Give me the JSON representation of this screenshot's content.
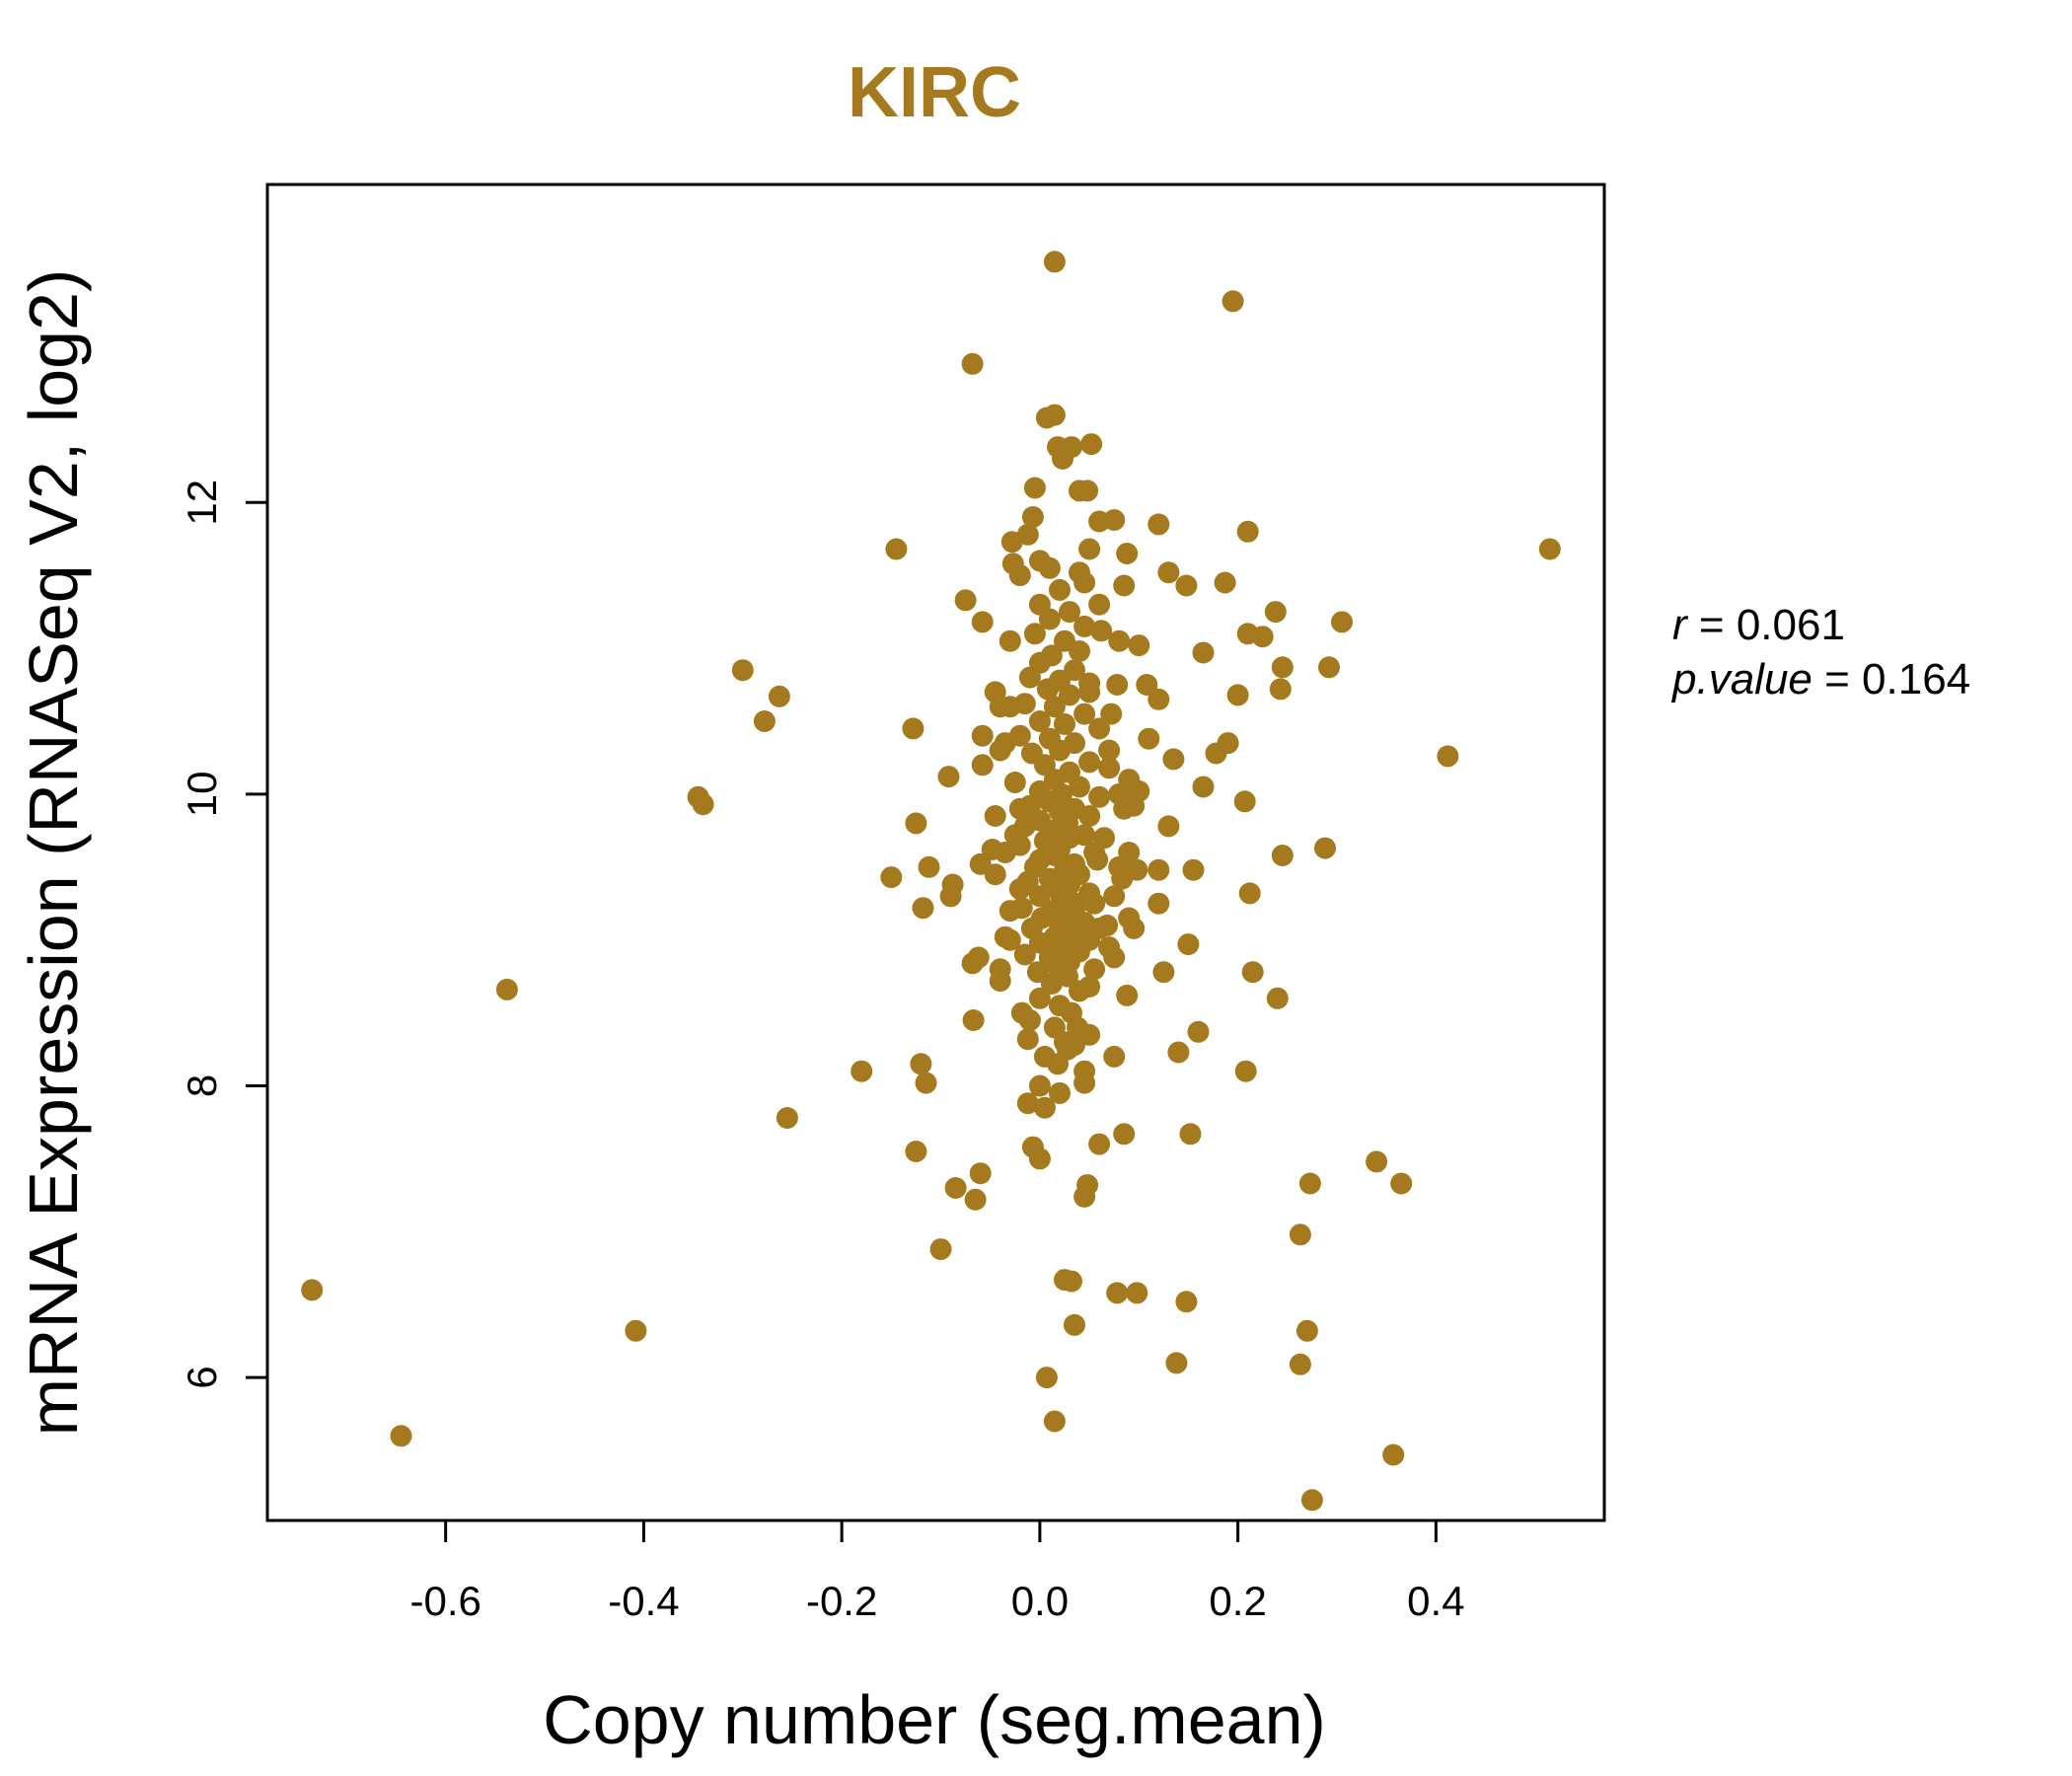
{
  "colors": {
    "points": "#A57A1F",
    "title": "#A57A1F",
    "axis": "#000000"
  },
  "stats": {
    "r_label": "r",
    "r_value": "0.061",
    "p_label": "p.value",
    "p_value": "0.164"
  },
  "chart_data": {
    "type": "scatter",
    "title": "KIRC",
    "xlabel": "Copy number (seg.mean)",
    "ylabel": "mRNA Expression (RNASeq V2, log2)",
    "xlim": [
      -0.78,
      0.57
    ],
    "ylim": [
      5.02,
      14.18
    ],
    "x_ticks": [
      -0.6,
      -0.4,
      -0.2,
      0.0,
      0.2,
      0.4
    ],
    "x_tick_labels": [
      "-0.6",
      "-0.4",
      "-0.2",
      "0.0",
      "0.2",
      "0.4"
    ],
    "y_ticks": [
      6,
      8,
      10,
      12
    ],
    "y_tick_labels": [
      "6",
      "8",
      "10",
      "12"
    ],
    "grid": false,
    "points": [
      [
        0.015,
        13.65
      ],
      [
        0.195,
        13.38
      ],
      [
        -0.068,
        12.95
      ],
      [
        0.015,
        12.6
      ],
      [
        0.007,
        12.58
      ],
      [
        0.052,
        12.4
      ],
      [
        0.018,
        12.38
      ],
      [
        0.032,
        12.38
      ],
      [
        0.023,
        12.3
      ],
      [
        -0.005,
        12.1
      ],
      [
        0.048,
        12.08
      ],
      [
        0.04,
        12.08
      ],
      [
        -0.145,
        11.68
      ],
      [
        0.515,
        11.68
      ],
      [
        0.12,
        11.85
      ],
      [
        0.21,
        11.8
      ],
      [
        0.075,
        11.88
      ],
      [
        0.06,
        11.87
      ],
      [
        -0.007,
        11.9
      ],
      [
        -0.012,
        11.78
      ],
      [
        -0.028,
        11.73
      ],
      [
        0.05,
        11.68
      ],
      [
        0.088,
        11.65
      ],
      [
        -0.027,
        11.58
      ],
      [
        0.0,
        11.6
      ],
      [
        0.04,
        11.52
      ],
      [
        0.13,
        11.52
      ],
      [
        0.148,
        11.43
      ],
      [
        0.187,
        11.45
      ],
      [
        0.085,
        11.43
      ],
      [
        -0.075,
        11.33
      ],
      [
        0.238,
        11.25
      ],
      [
        0.305,
        11.18
      ],
      [
        -0.058,
        11.18
      ],
      [
        0.045,
        11.15
      ],
      [
        0.062,
        11.12
      ],
      [
        0.21,
        11.1
      ],
      [
        0.225,
        11.08
      ],
      [
        -0.03,
        11.05
      ],
      [
        0.08,
        11.05
      ],
      [
        0.1,
        11.02
      ],
      [
        0.165,
        10.97
      ],
      [
        0.245,
        10.87
      ],
      [
        0.292,
        10.87
      ],
      [
        -0.3,
        10.85
      ],
      [
        -0.263,
        10.67
      ],
      [
        -0.278,
        10.5
      ],
      [
        0.078,
        10.75
      ],
      [
        0.108,
        10.75
      ],
      [
        0.2,
        10.68
      ],
      [
        0.243,
        10.72
      ],
      [
        0.12,
        10.65
      ],
      [
        -0.045,
        10.7
      ],
      [
        -0.04,
        10.6
      ],
      [
        0.05,
        10.7
      ],
      [
        -0.128,
        10.45
      ],
      [
        -0.058,
        10.4
      ],
      [
        0.11,
        10.38
      ],
      [
        0.19,
        10.35
      ],
      [
        -0.035,
        10.35
      ],
      [
        0.178,
        10.28
      ],
      [
        0.412,
        10.26
      ],
      [
        0.135,
        10.24
      ],
      [
        0.07,
        10.18
      ],
      [
        -0.058,
        10.2
      ],
      [
        -0.092,
        10.12
      ],
      [
        0.165,
        10.05
      ],
      [
        0.1,
        10.02
      ],
      [
        -0.345,
        9.98
      ],
      [
        -0.34,
        9.93
      ],
      [
        0.207,
        9.95
      ],
      [
        0.095,
        9.92
      ],
      [
        -0.02,
        9.9
      ],
      [
        -0.045,
        9.85
      ],
      [
        -0.125,
        9.8
      ],
      [
        0.13,
        9.78
      ],
      [
        -0.025,
        9.72
      ],
      [
        0.09,
        9.6
      ],
      [
        0.245,
        9.58
      ],
      [
        0.288,
        9.63
      ],
      [
        -0.048,
        9.62
      ],
      [
        -0.06,
        9.52
      ],
      [
        -0.112,
        9.5
      ],
      [
        0.058,
        9.55
      ],
      [
        0.098,
        9.48
      ],
      [
        0.12,
        9.48
      ],
      [
        0.155,
        9.48
      ],
      [
        -0.15,
        9.43
      ],
      [
        -0.088,
        9.38
      ],
      [
        -0.02,
        9.35
      ],
      [
        0.083,
        9.42
      ],
      [
        0.212,
        9.32
      ],
      [
        -0.09,
        9.3
      ],
      [
        0.12,
        9.25
      ],
      [
        -0.118,
        9.22
      ],
      [
        -0.03,
        9.2
      ],
      [
        0.055,
        9.25
      ],
      [
        0.09,
        9.15
      ],
      [
        0.095,
        9.08
      ],
      [
        0.06,
        9.08
      ],
      [
        -0.035,
        9.02
      ],
      [
        0.15,
        8.97
      ],
      [
        -0.062,
        8.88
      ],
      [
        -0.068,
        8.84
      ],
      [
        0.075,
        8.88
      ],
      [
        0.215,
        8.78
      ],
      [
        0.125,
        8.78
      ],
      [
        -0.04,
        8.72
      ],
      [
        0.05,
        8.68
      ],
      [
        0.088,
        8.62
      ],
      [
        0.24,
        8.6
      ],
      [
        -0.018,
        8.5
      ],
      [
        -0.067,
        8.45
      ],
      [
        0.038,
        8.4
      ],
      [
        0.05,
        8.35
      ],
      [
        0.16,
        8.37
      ],
      [
        -0.012,
        8.32
      ],
      [
        0.035,
        8.28
      ],
      [
        0.14,
        8.23
      ],
      [
        0.075,
        8.2
      ],
      [
        -0.12,
        8.15
      ],
      [
        -0.18,
        8.1
      ],
      [
        0.045,
        8.1
      ],
      [
        0.208,
        8.1
      ],
      [
        -0.115,
        8.02
      ],
      [
        0.045,
        8.02
      ],
      [
        0.0,
        8.0
      ],
      [
        0.02,
        7.95
      ],
      [
        -0.012,
        7.88
      ],
      [
        0.005,
        7.85
      ],
      [
        -0.255,
        7.78
      ],
      [
        0.085,
        7.67
      ],
      [
        0.152,
        7.67
      ],
      [
        0.06,
        7.6
      ],
      [
        -0.007,
        7.58
      ],
      [
        0.0,
        7.5
      ],
      [
        -0.125,
        7.55
      ],
      [
        0.34,
        7.48
      ],
      [
        -0.06,
        7.4
      ],
      [
        0.365,
        7.33
      ],
      [
        0.273,
        7.33
      ],
      [
        0.048,
        7.32
      ],
      [
        -0.085,
        7.3
      ],
      [
        0.045,
        7.24
      ],
      [
        -0.065,
        7.22
      ],
      [
        0.263,
        6.98
      ],
      [
        -0.1,
        6.88
      ],
      [
        0.025,
        6.67
      ],
      [
        0.032,
        6.66
      ],
      [
        0.078,
        6.58
      ],
      [
        0.098,
        6.58
      ],
      [
        0.148,
        6.52
      ],
      [
        -0.735,
        6.6
      ],
      [
        0.035,
        6.36
      ],
      [
        -0.408,
        6.32
      ],
      [
        0.27,
        6.32
      ],
      [
        0.138,
        6.1
      ],
      [
        0.263,
        6.09
      ],
      [
        0.007,
        6.0
      ],
      [
        0.015,
        5.7
      ],
      [
        -0.645,
        5.6
      ],
      [
        0.357,
        5.47
      ],
      [
        0.275,
        5.16
      ],
      [
        -0.538,
        8.66
      ],
      [
        0.02,
        11.4
      ],
      [
        0.0,
        11.3
      ],
      [
        0.03,
        11.25
      ],
      [
        0.01,
        11.2
      ],
      [
        -0.005,
        11.1
      ],
      [
        0.025,
        11.05
      ],
      [
        0.04,
        10.98
      ],
      [
        0.012,
        10.95
      ],
      [
        0.0,
        10.9
      ],
      [
        0.035,
        10.85
      ],
      [
        -0.01,
        10.8
      ],
      [
        0.02,
        10.78
      ],
      [
        0.05,
        10.76
      ],
      [
        0.008,
        10.72
      ],
      [
        0.03,
        10.68
      ],
      [
        -0.015,
        10.62
      ],
      [
        0.015,
        10.6
      ],
      [
        0.045,
        10.55
      ],
      [
        0.0,
        10.5
      ],
      [
        0.025,
        10.48
      ],
      [
        0.06,
        10.45
      ],
      [
        -0.02,
        10.4
      ],
      [
        0.01,
        10.38
      ],
      [
        0.035,
        10.35
      ],
      [
        0.02,
        10.3
      ],
      [
        -0.008,
        10.28
      ],
      [
        0.05,
        10.22
      ],
      [
        0.005,
        10.2
      ],
      [
        0.03,
        10.15
      ],
      [
        0.015,
        10.1
      ],
      [
        -0.025,
        10.08
      ],
      [
        0.04,
        10.05
      ],
      [
        0.0,
        10.02
      ],
      [
        0.022,
        10.0
      ],
      [
        0.06,
        9.98
      ],
      [
        0.01,
        9.95
      ],
      [
        -0.01,
        9.92
      ],
      [
        0.035,
        9.9
      ],
      [
        0.02,
        9.88
      ],
      [
        0.05,
        9.85
      ],
      [
        0.0,
        9.82
      ],
      [
        0.028,
        9.8
      ],
      [
        -0.015,
        9.78
      ],
      [
        0.012,
        9.75
      ],
      [
        0.045,
        9.72
      ],
      [
        0.03,
        9.7
      ],
      [
        0.005,
        9.68
      ],
      [
        -0.02,
        9.65
      ],
      [
        0.02,
        9.62
      ],
      [
        0.055,
        9.6
      ],
      [
        0.015,
        9.58
      ],
      [
        0.0,
        9.55
      ],
      [
        0.035,
        9.52
      ],
      [
        -0.005,
        9.5
      ],
      [
        0.025,
        9.48
      ],
      [
        0.04,
        9.45
      ],
      [
        0.01,
        9.42
      ],
      [
        -0.012,
        9.4
      ],
      [
        0.03,
        9.38
      ],
      [
        0.018,
        9.35
      ],
      [
        0.05,
        9.32
      ],
      [
        0.0,
        9.3
      ],
      [
        0.022,
        9.28
      ],
      [
        0.038,
        9.25
      ],
      [
        -0.018,
        9.22
      ],
      [
        0.012,
        9.2
      ],
      [
        0.03,
        9.18
      ],
      [
        0.002,
        9.15
      ],
      [
        0.045,
        9.12
      ],
      [
        0.02,
        9.1
      ],
      [
        -0.008,
        9.08
      ],
      [
        0.035,
        9.05
      ],
      [
        0.015,
        9.02
      ],
      [
        0.05,
        9.0
      ],
      [
        0.0,
        8.98
      ],
      [
        0.025,
        8.95
      ],
      [
        0.04,
        8.92
      ],
      [
        -0.015,
        8.9
      ],
      [
        0.01,
        8.88
      ],
      [
        0.03,
        8.85
      ],
      [
        0.018,
        8.82
      ],
      [
        0.055,
        8.8
      ],
      [
        -0.002,
        8.78
      ],
      [
        0.028,
        8.75
      ],
      [
        0.012,
        8.7
      ],
      [
        0.04,
        8.65
      ],
      [
        0.0,
        8.6
      ],
      [
        0.02,
        8.55
      ],
      [
        0.032,
        8.5
      ],
      [
        -0.01,
        8.45
      ],
      [
        0.015,
        8.4
      ],
      [
        0.025,
        8.3
      ],
      [
        0.005,
        8.2
      ],
      [
        0.018,
        8.15
      ],
      [
        0.028,
        8.25
      ],
      [
        0.07,
        10.3
      ],
      [
        0.08,
        10.0
      ],
      [
        0.065,
        9.7
      ],
      [
        0.075,
        9.3
      ],
      [
        0.068,
        9.1
      ],
      [
        0.085,
        9.9
      ],
      [
        0.09,
        10.1
      ],
      [
        0.072,
        10.55
      ],
      [
        -0.03,
        10.6
      ],
      [
        -0.04,
        10.3
      ],
      [
        -0.035,
        9.6
      ],
      [
        -0.045,
        9.45
      ],
      [
        -0.03,
        9.0
      ],
      [
        -0.04,
        8.8
      ],
      [
        0.07,
        8.95
      ],
      [
        0.08,
        9.5
      ],
      [
        0.06,
        11.3
      ],
      [
        0.045,
        11.45
      ],
      [
        -0.02,
        11.5
      ],
      [
        0.01,
        11.55
      ]
    ]
  }
}
